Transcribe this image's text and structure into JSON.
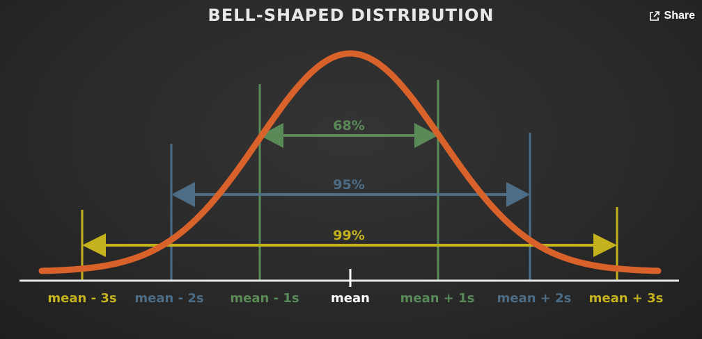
{
  "title": "BELL-SHAPED DISTRIBUTION",
  "share": {
    "label": "Share",
    "icon": "share-icon"
  },
  "colors": {
    "curve": "#d9622b",
    "one_sd": "#5a8a58",
    "two_sd": "#4d6d86",
    "three_sd": "#c4b21f",
    "mean": "#ffffff",
    "axis": "#e6e6e6"
  },
  "bands": [
    {
      "id": "one-sd",
      "label": "68%"
    },
    {
      "id": "two-sd",
      "label": "95%"
    },
    {
      "id": "three-sd",
      "label": "99%"
    }
  ],
  "axis_labels": {
    "minus3": "mean - 3s",
    "minus2": "mean - 2s",
    "minus1": "mean - 1s",
    "mean": "mean",
    "plus1": "mean + 1s",
    "plus2": "mean + 2s",
    "plus3": "mean + 3s"
  }
}
